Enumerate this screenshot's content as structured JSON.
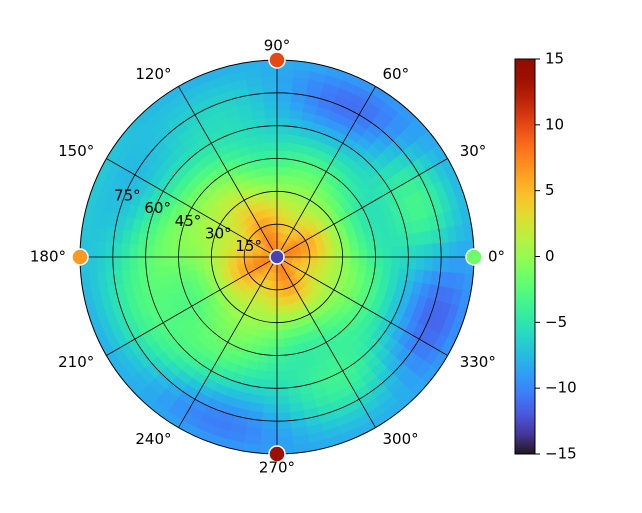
{
  "chart_data": {
    "type": "heatmap",
    "projection": "polar",
    "angular_ticks": [
      "0°",
      "30°",
      "60°",
      "90°",
      "120°",
      "150°",
      "180°",
      "210°",
      "240°",
      "270°",
      "300°",
      "330°"
    ],
    "radial_ticks": [
      "15°",
      "30°",
      "45°",
      "60°",
      "75°"
    ],
    "radial_range": [
      0,
      90
    ],
    "grid": true,
    "colormap": "turbo",
    "colorbar": {
      "range": [
        -15,
        15
      ],
      "ticks": [
        "15",
        "10",
        "5",
        "0",
        "−5",
        "−10",
        "−15"
      ],
      "tick_values": [
        15,
        10,
        5,
        0,
        -5,
        -10,
        -15
      ],
      "placement": "right"
    },
    "field": {
      "description_free": true,
      "center_value": 11.5,
      "blobs": [
        {
          "theta": 0,
          "r": 0,
          "amp": 14.5,
          "sigma_r": 26,
          "sigma_t": 360
        },
        {
          "theta": 180,
          "r": 55,
          "amp": 4,
          "sigma_r": 14,
          "sigma_t": 22
        },
        {
          "theta": 125,
          "r": 40,
          "amp": 3.5,
          "sigma_r": 12,
          "sigma_t": 18
        },
        {
          "theta": 230,
          "r": 58,
          "amp": 3,
          "sigma_r": 14,
          "sigma_t": 20
        },
        {
          "theta": 20,
          "r": 70,
          "amp": 3,
          "sigma_r": 12,
          "sigma_t": 16
        },
        {
          "theta": 300,
          "r": 60,
          "amp": 2.5,
          "sigma_r": 12,
          "sigma_t": 18
        },
        {
          "theta": 60,
          "r": 80,
          "amp": -3,
          "sigma_r": 12,
          "sigma_t": 20
        },
        {
          "theta": 340,
          "r": 80,
          "amp": -3.5,
          "sigma_r": 12,
          "sigma_t": 18
        },
        {
          "theta": 250,
          "r": 82,
          "amp": -3,
          "sigma_r": 10,
          "sigma_t": 20
        }
      ],
      "baseline": -7.5
    },
    "edge_markers": [
      {
        "theta": 0,
        "r": 90,
        "value": -1.5
      },
      {
        "theta": 90,
        "r": 90,
        "value": 10
      },
      {
        "theta": 180,
        "r": 90,
        "value": 6.5
      },
      {
        "theta": 270,
        "r": 90,
        "value": 13.5
      }
    ],
    "center_marker": {
      "theta": 0,
      "r": 0,
      "value": -13
    }
  }
}
